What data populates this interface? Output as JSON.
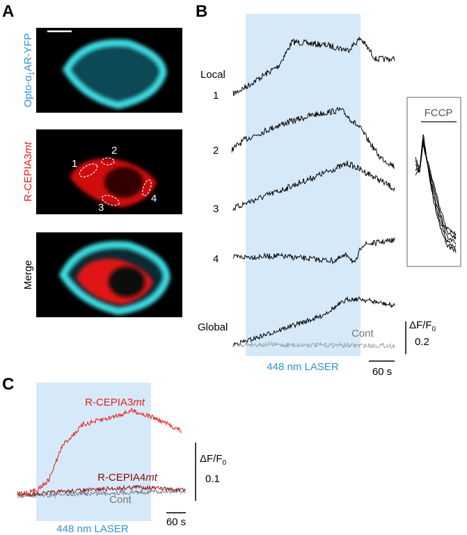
{
  "panel_a": {
    "label": "A",
    "channel_1": {
      "prefix": "Opto-α",
      "sub": "1",
      "suffix": "AR-YFP"
    },
    "channel_2": {
      "name": "R-CEPIA3",
      "italic": "mt"
    },
    "channel_3": "Merge",
    "rois": [
      "1",
      "2",
      "3",
      "4"
    ]
  },
  "panel_b": {
    "label": "B",
    "local": "Local",
    "traces": [
      "1",
      "2",
      "3",
      "4"
    ],
    "global": "Global",
    "control": "Cont",
    "scale_label": {
      "main": "ΔF/F",
      "sub": "0"
    },
    "scale_value": "0.2",
    "stimulus": "448 nm LASER",
    "time_bar": "60 s",
    "inset": "FCCP"
  },
  "panel_c": {
    "label": "C",
    "sensor_1": {
      "name": "R-CEPIA3",
      "italic": "mt"
    },
    "sensor_2": {
      "name": "R-CEPIA4",
      "italic": "mt"
    },
    "control": "Cont",
    "scale_label": {
      "main": "ΔF/F",
      "sub": "0"
    },
    "scale_value": "0.1",
    "stimulus": "448 nm LASER",
    "time_bar": "60 s"
  }
}
